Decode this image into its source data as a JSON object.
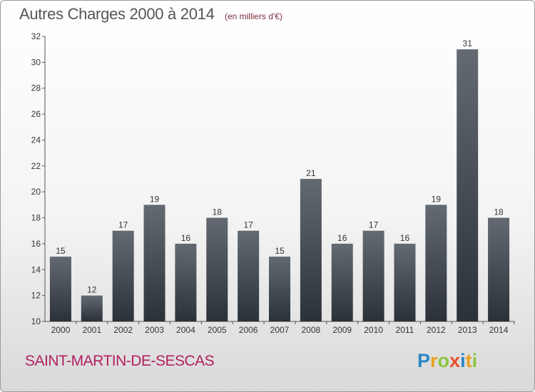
{
  "header": {
    "title": "Autres Charges 2000 à 2014",
    "subtitle": "(en milliers d'€)"
  },
  "footer": {
    "commune": "SAINT-MARTIN-DE-SESCAS",
    "logo": "Proxiti"
  },
  "colors": {
    "bar_top": "#636a72",
    "bar_bottom": "#2b3138",
    "commune": "#b22060"
  },
  "chart_data": {
    "type": "bar",
    "title": "Autres Charges 2000 à 2014",
    "subtitle": "(en milliers d'€)",
    "categories": [
      "2000",
      "2001",
      "2002",
      "2003",
      "2004",
      "2005",
      "2006",
      "2007",
      "2008",
      "2009",
      "2010",
      "2011",
      "2012",
      "2013",
      "2014"
    ],
    "values": [
      15,
      12,
      17,
      19,
      16,
      18,
      17,
      15,
      21,
      16,
      17,
      16,
      19,
      31,
      18
    ],
    "ylim": [
      10,
      32
    ],
    "yticks": [
      10,
      12,
      14,
      16,
      18,
      20,
      22,
      24,
      26,
      28,
      30,
      32
    ],
    "xlabel": "",
    "ylabel": "",
    "grid": false,
    "legend": "none"
  }
}
